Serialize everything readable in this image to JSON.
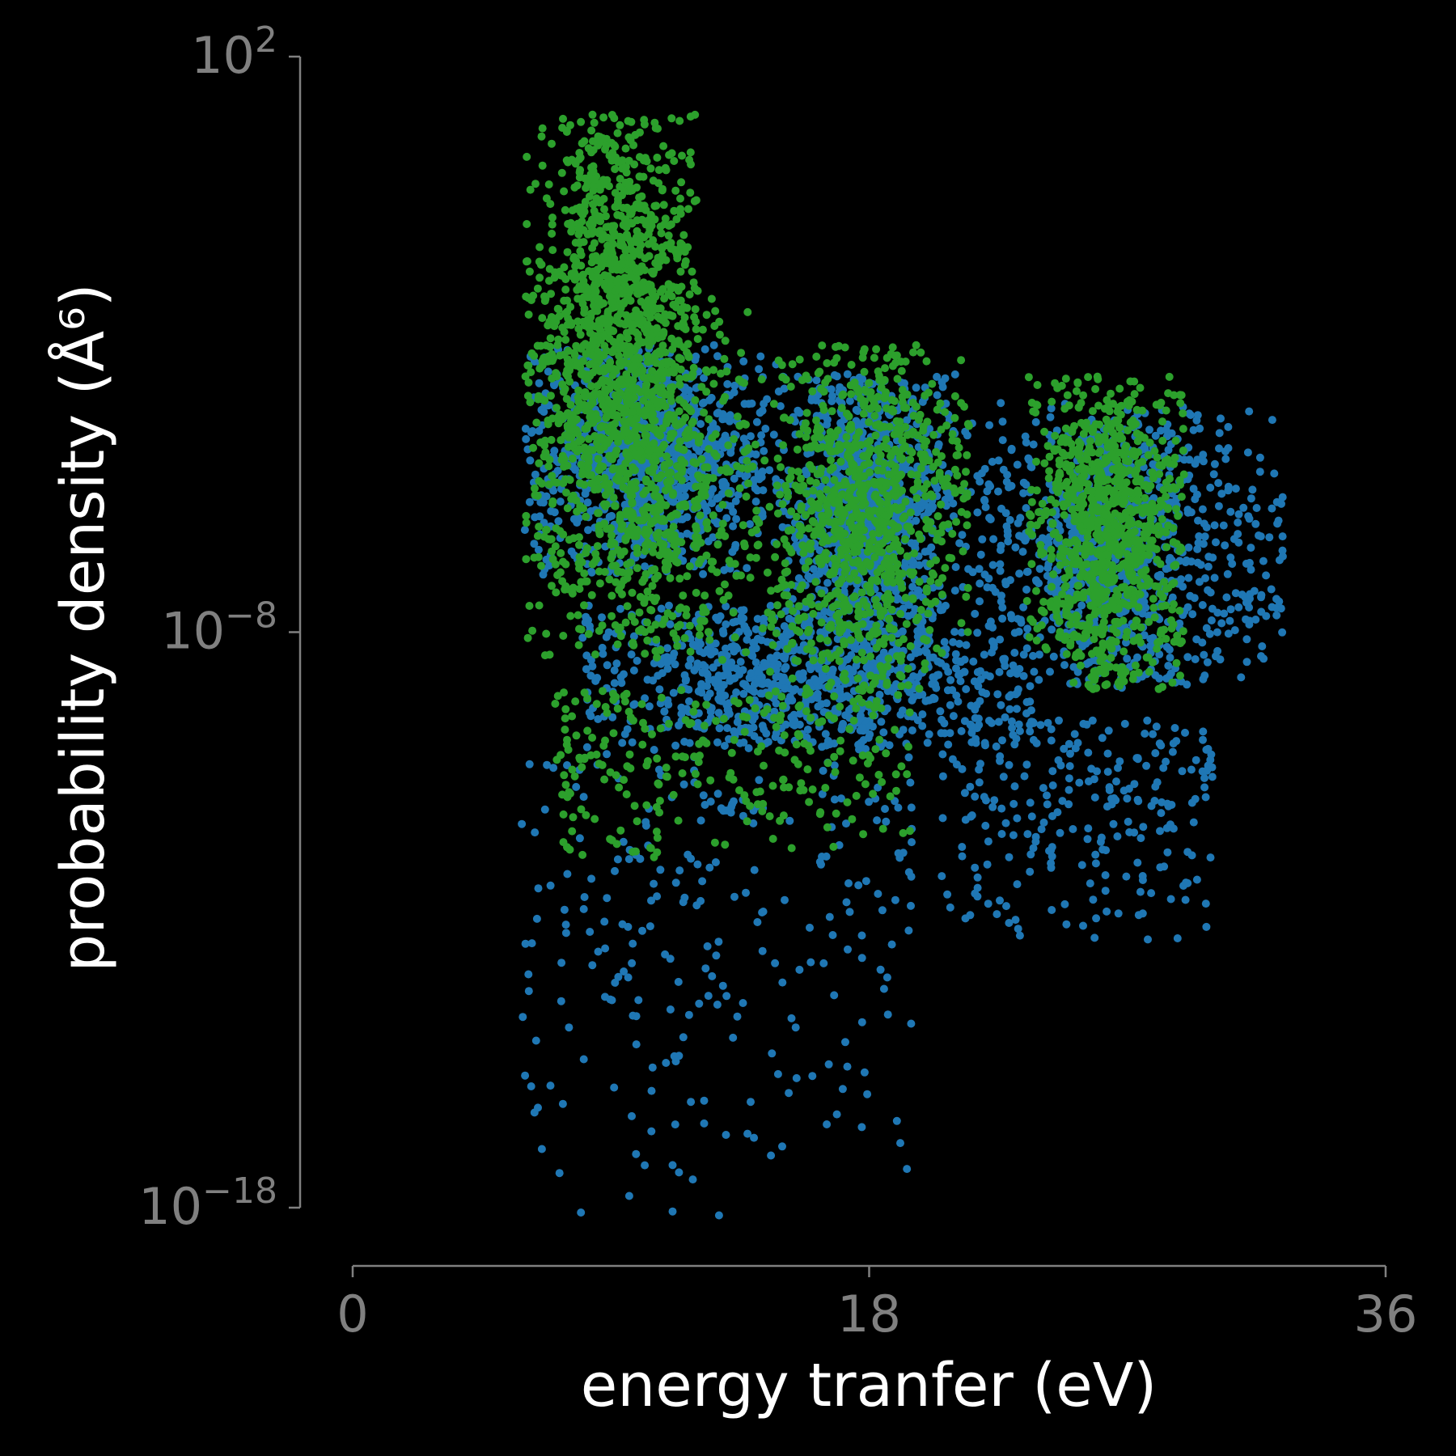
{
  "chart_data": {
    "type": "scatter",
    "title": "",
    "xlabel": "energy tranfer (eV)",
    "ylabel": "probability density (Å⁶)",
    "x_axis": {
      "scale": "linear",
      "lim": [
        0,
        36
      ],
      "ticks": [
        0,
        18,
        36
      ],
      "tick_labels": [
        "0",
        "18",
        "36"
      ]
    },
    "y_axis": {
      "scale": "log",
      "lim_exponent": [
        -18,
        2
      ],
      "tick_exponents": [
        2,
        -8,
        -18
      ],
      "tick_labels": [
        {
          "base": "10",
          "exp": "2"
        },
        {
          "base": "10",
          "exp": "−8"
        },
        {
          "base": "10",
          "exp": "−18"
        }
      ]
    },
    "grid": false,
    "legend": "none",
    "background": "#000000",
    "axis_color": "#808080",
    "series": [
      {
        "color": "#1f77b4",
        "clusters": [
          {
            "x": [
              6,
              15
            ],
            "log10_y": [
              -7,
              -3
            ]
          },
          {
            "x": [
              15,
              21
            ],
            "log10_y": [
              -8,
              -3.5
            ]
          },
          {
            "x": [
              21,
              32.5
            ],
            "log10_y": [
              -9,
              -4
            ]
          },
          {
            "x": [
              8,
              24
            ],
            "log10_y": [
              -10,
              -7.5
            ]
          }
        ],
        "outliers": [
          {
            "x": [
              5.8,
              19.5
            ],
            "log10_y": [
              -18.4,
              -10
            ]
          },
          {
            "x": [
              20.5,
              30
            ],
            "log10_y": [
              -13.5,
              -9.5
            ]
          }
        ]
      },
      {
        "color": "#2ca02c",
        "clusters": [
          {
            "x": [
              6,
              12
            ],
            "log10_y": [
              -5,
              1
            ]
          },
          {
            "x": [
              6,
              14
            ],
            "log10_y": [
              -8.5,
              -2
            ]
          },
          {
            "x": [
              14,
              21.5
            ],
            "log10_y": [
              -9,
              -3
            ]
          },
          {
            "x": [
              23.5,
              29
            ],
            "log10_y": [
              -9,
              -3.5
            ]
          }
        ],
        "outliers": [
          {
            "x": [
              7,
              19.5
            ],
            "log10_y": [
              -12,
              -9
            ]
          }
        ]
      }
    ]
  }
}
